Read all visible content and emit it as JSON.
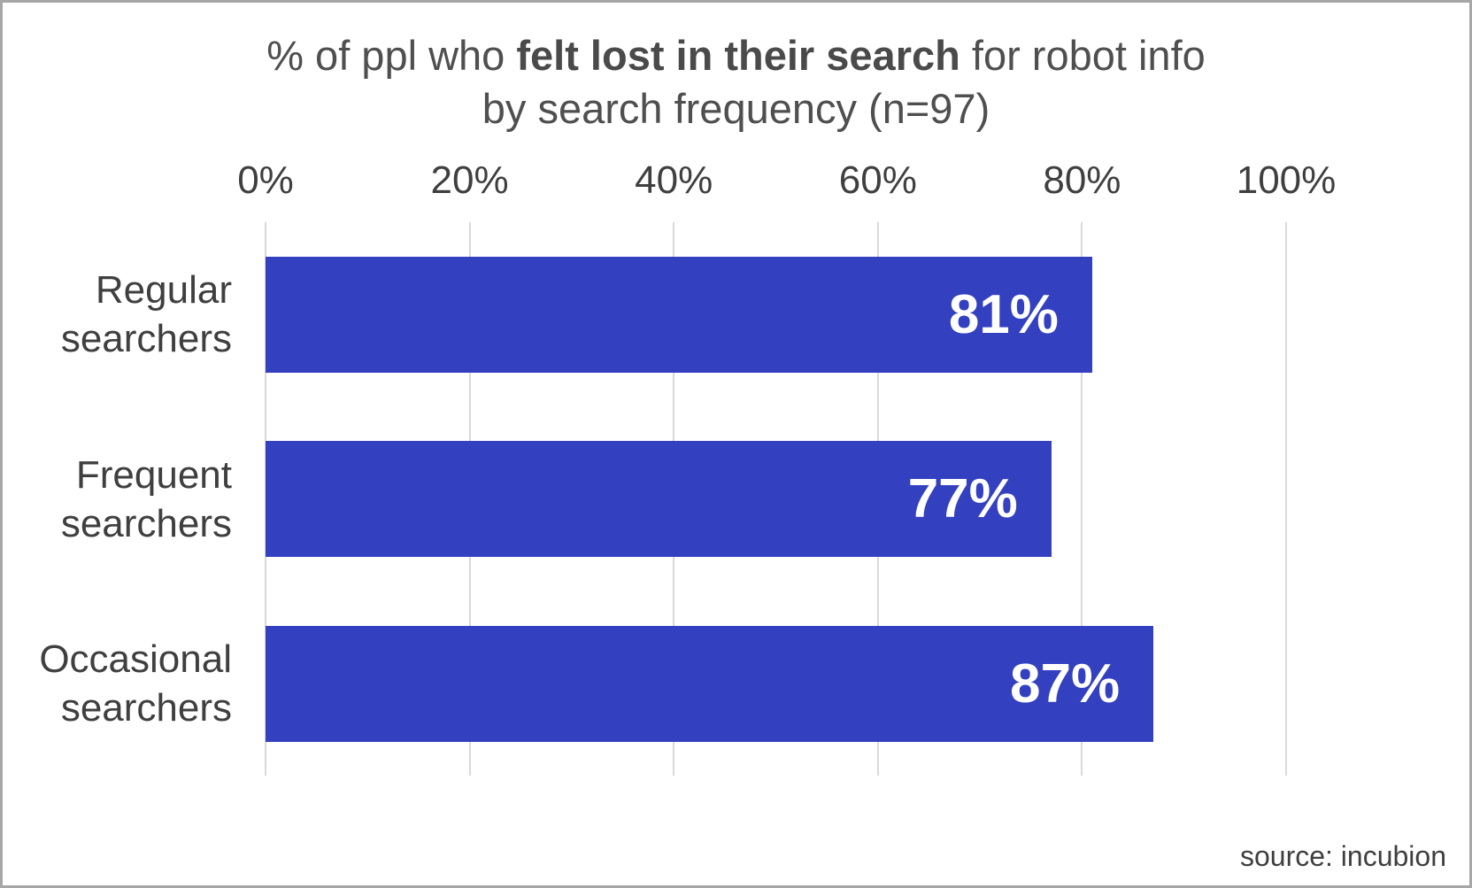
{
  "chart_data": {
    "type": "bar",
    "orientation": "horizontal",
    "title_prefix": "% of ppl who ",
    "title_bold": "felt lost in their search",
    "title_suffix": " for robot info",
    "title_line2": "by search frequency (n=97)",
    "categories": [
      "Regular searchers",
      "Frequent searchers",
      "Occasional searchers"
    ],
    "values": [
      81,
      77,
      87
    ],
    "value_labels": [
      "81%",
      "77%",
      "87%"
    ],
    "x_ticks": [
      "0%",
      "20%",
      "40%",
      "60%",
      "80%",
      "100%"
    ],
    "xlim": [
      0,
      100
    ],
    "bar_color": "#3340c0",
    "gridline_color": "#d9d9d9",
    "legend": "none",
    "source": "source: incubion"
  }
}
